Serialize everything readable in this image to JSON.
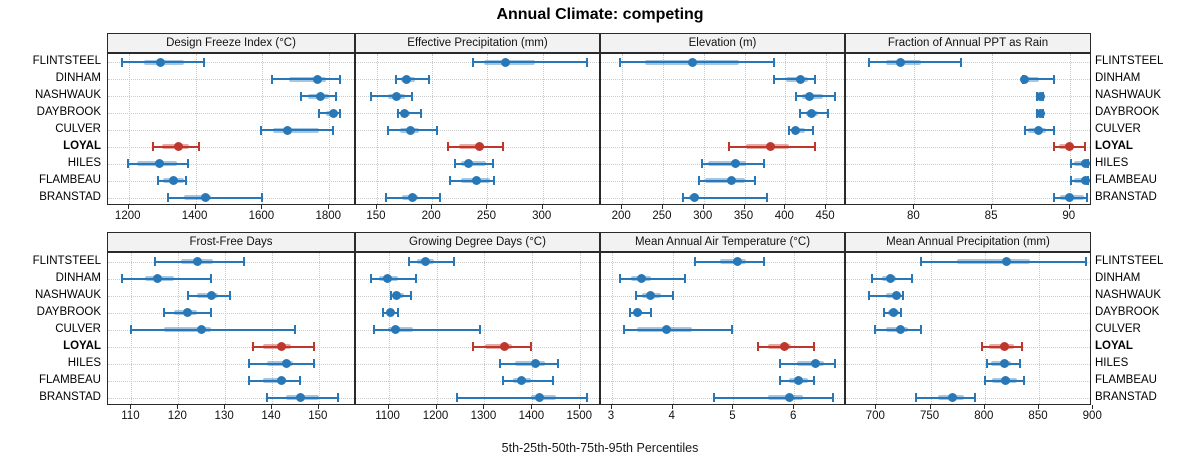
{
  "title": "Annual Climate: competing",
  "caption": "5th-25th-50th-75th-95th Percentiles",
  "colors": {
    "series_blue": "#2878b8",
    "series_blue_band": "rgba(40,120,184,0.42)",
    "highlight_red": "#bf362c",
    "highlight_red_band": "rgba(191,54,44,0.42)",
    "grid": "#c9c9c9",
    "panel_border": "#2a2a2a",
    "strip_bg": "#f2f2f2",
    "text": "#111111"
  },
  "chart_data": {
    "type": "dotplot-percentile-intervals",
    "title": "Annual Climate: competing",
    "caption": "5th-25th-50th-75th-95th Percentiles",
    "percentile_labels": [
      "5th",
      "25th",
      "50th",
      "75th",
      "95th"
    ],
    "legend_position": "none",
    "grid": "dotted",
    "layout": {
      "rows": 2,
      "cols": 4
    },
    "sites": [
      "FLINTSTEEL",
      "DINHAM",
      "NASHWAUK",
      "DAYBROOK",
      "CULVER",
      "LOYAL",
      "HILES",
      "FLAMBEAU",
      "BRANSTAD"
    ],
    "highlight_site": "LOYAL",
    "panels": [
      {
        "label": "Design Freeze Index (°C)",
        "row": 0,
        "col": 0,
        "xlim": [
          1138,
          1874
        ],
        "ticks": [
          1200,
          1400,
          1600,
          1800
        ],
        "values": [
          [
            1180,
            1245,
            1295,
            1365,
            1425
          ],
          [
            1630,
            1680,
            1765,
            1790,
            1832
          ],
          [
            1715,
            1735,
            1775,
            1800,
            1820
          ],
          [
            1770,
            1790,
            1813,
            1827,
            1833
          ],
          [
            1595,
            1632,
            1675,
            1770,
            1810
          ],
          [
            1273,
            1300,
            1348,
            1380,
            1410
          ],
          [
            1199,
            1226,
            1293,
            1345,
            1376
          ],
          [
            1287,
            1303,
            1333,
            1364,
            1372
          ],
          [
            1318,
            1364,
            1430,
            1445,
            1600
          ]
        ]
      },
      {
        "label": "Effective Precipitation (mm)",
        "row": 0,
        "col": 1,
        "xlim": [
          131,
          351
        ],
        "ticks": [
          150,
          200,
          250,
          300
        ],
        "values": [
          [
            237,
            247,
            266,
            293,
            340
          ],
          [
            167,
            172,
            177,
            184,
            197
          ],
          [
            145,
            160,
            168,
            175,
            182
          ],
          [
            169,
            172,
            175,
            180,
            190
          ],
          [
            160,
            171,
            180,
            188,
            204
          ],
          [
            214,
            224,
            243,
            247,
            264
          ],
          [
            221,
            226,
            233,
            249,
            255
          ],
          [
            216,
            226,
            240,
            252,
            256
          ],
          [
            158,
            173,
            182,
            187,
            207
          ]
        ]
      },
      {
        "label": "Elevation (m)",
        "row": 0,
        "col": 2,
        "xlim": [
          174,
          472
        ],
        "ticks": [
          200,
          250,
          300,
          350,
          400,
          450
        ],
        "values": [
          [
            197,
            228,
            286,
            343,
            386
          ],
          [
            386,
            401,
            419,
            428,
            437
          ],
          [
            413,
            420,
            430,
            446,
            461
          ],
          [
            418,
            425,
            432,
            440,
            452
          ],
          [
            404,
            408,
            412,
            424,
            434
          ],
          [
            331,
            352,
            382,
            405,
            436
          ],
          [
            298,
            305,
            339,
            352,
            374
          ],
          [
            294,
            302,
            334,
            350,
            363
          ],
          [
            275,
            282,
            289,
            294,
            378
          ]
        ]
      },
      {
        "label": "Fraction of Annual PPT as Rain",
        "row": 0,
        "col": 3,
        "xlim": [
          75.6,
          91.3
        ],
        "ticks": [
          80,
          85,
          90
        ],
        "values": [
          [
            77.1,
            78.2,
            79.1,
            80.4,
            83.0
          ],
          [
            87.0,
            87.0,
            87.1,
            88.0,
            89.0
          ],
          [
            87.9,
            88.0,
            88.1,
            88.2,
            88.3
          ],
          [
            87.9,
            88.0,
            88.1,
            88.2,
            88.3
          ],
          [
            87.1,
            87.3,
            88.0,
            88.5,
            89.0
          ],
          [
            89.0,
            89.3,
            90.0,
            90.3,
            91.0
          ],
          [
            90.1,
            90.3,
            91.0,
            91.1,
            91.2
          ],
          [
            90.1,
            90.3,
            91.0,
            91.1,
            91.2
          ],
          [
            89.0,
            89.4,
            90.0,
            90.9,
            91.1
          ]
        ]
      },
      {
        "label": "Frost-Free Days",
        "row": 1,
        "col": 0,
        "xlim": [
          105,
          157.5
        ],
        "ticks": [
          110,
          120,
          130,
          140,
          150
        ],
        "values": [
          [
            115,
            120.5,
            124,
            127.5,
            134
          ],
          [
            108,
            113,
            115.5,
            119,
            127
          ],
          [
            122,
            124,
            127,
            128.5,
            131
          ],
          [
            117,
            119,
            122,
            124,
            127
          ],
          [
            110,
            117,
            125,
            127,
            145
          ],
          [
            136,
            138,
            142,
            144,
            149
          ],
          [
            135,
            139,
            143,
            144.5,
            149
          ],
          [
            135,
            138,
            142,
            143,
            146
          ],
          [
            139,
            143,
            146,
            150,
            154
          ]
        ]
      },
      {
        "label": "Growing Degree Days (°C)",
        "row": 1,
        "col": 1,
        "xlim": [
          1032,
          1539
        ],
        "ticks": [
          1100,
          1200,
          1300,
          1400,
          1500
        ],
        "values": [
          [
            1143,
            1160,
            1177,
            1195,
            1236
          ],
          [
            1063,
            1081,
            1098,
            1119,
            1157
          ],
          [
            1106,
            1110,
            1117,
            1132,
            1146
          ],
          [
            1089,
            1095,
            1105,
            1112,
            1119
          ],
          [
            1069,
            1098,
            1115,
            1150,
            1290
          ],
          [
            1276,
            1302,
            1341,
            1357,
            1397
          ],
          [
            1332,
            1364,
            1406,
            1426,
            1453
          ],
          [
            1339,
            1360,
            1377,
            1398,
            1442
          ],
          [
            1242,
            1398,
            1414,
            1450,
            1515
          ]
        ]
      },
      {
        "label": "Mean Annual Air Temperature (°C)",
        "row": 1,
        "col": 2,
        "xlim": [
          2.82,
          6.82
        ],
        "ticks": [
          3,
          4,
          5,
          6
        ],
        "values": [
          [
            4.37,
            4.78,
            5.07,
            5.21,
            5.51
          ],
          [
            3.13,
            3.31,
            3.48,
            3.64,
            4.21
          ],
          [
            3.4,
            3.5,
            3.64,
            3.8,
            4.0
          ],
          [
            3.3,
            3.35,
            3.42,
            3.5,
            3.65
          ],
          [
            3.2,
            3.42,
            3.9,
            4.31,
            4.97
          ],
          [
            5.4,
            5.57,
            5.84,
            5.95,
            6.33
          ],
          [
            5.77,
            6.05,
            6.35,
            6.49,
            6.67
          ],
          [
            5.77,
            5.92,
            6.07,
            6.22,
            6.33
          ],
          [
            4.68,
            5.57,
            5.93,
            6.14,
            6.64
          ]
        ]
      },
      {
        "label": "Mean Annual Precipitation (mm)",
        "row": 1,
        "col": 3,
        "xlim": [
          672,
          897
        ],
        "ticks": [
          700,
          750,
          800,
          850,
          900
        ],
        "values": [
          [
            741,
            774,
            820,
            842,
            893
          ],
          [
            696,
            705,
            713,
            718,
            733
          ],
          [
            693,
            709,
            719,
            723,
            725
          ],
          [
            707,
            711,
            716,
            721,
            723
          ],
          [
            699,
            709,
            722,
            729,
            741
          ],
          [
            797,
            804,
            818,
            827,
            834
          ],
          [
            802,
            806,
            818,
            824,
            832
          ],
          [
            800,
            807,
            819,
            830,
            836
          ],
          [
            737,
            757,
            770,
            781,
            791
          ]
        ]
      }
    ]
  }
}
